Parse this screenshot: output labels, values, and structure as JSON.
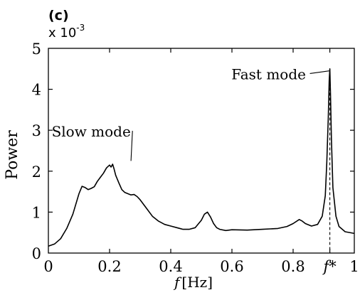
{
  "chart_data": {
    "type": "line",
    "panel_label": "(c)",
    "title": "",
    "xlabel_italic": "f",
    "xlabel_unit": "[Hz]",
    "ylabel": "Power",
    "y_scale_note_base": "x 10",
    "y_scale_note_exp": "-3",
    "xlim": [
      0,
      1
    ],
    "ylim": [
      0,
      5
    ],
    "x_ticks": [
      {
        "value": 0,
        "label": "0"
      },
      {
        "value": 0.2,
        "label": "0.2"
      },
      {
        "value": 0.4,
        "label": "0.4"
      },
      {
        "value": 0.6,
        "label": "0.6"
      },
      {
        "value": 0.8,
        "label": "0.8"
      },
      {
        "value": 0.92,
        "label": "f*"
      },
      {
        "value": 1,
        "label": "1"
      }
    ],
    "y_ticks": [
      {
        "value": 0,
        "label": "0"
      },
      {
        "value": 1,
        "label": "1"
      },
      {
        "value": 2,
        "label": "2"
      },
      {
        "value": 3,
        "label": "3"
      },
      {
        "value": 4,
        "label": "4"
      },
      {
        "value": 5,
        "label": "5"
      }
    ],
    "marker_line_x": 0.92,
    "series": [
      {
        "x": [
          0.0,
          0.02,
          0.04,
          0.06,
          0.08,
          0.1,
          0.11,
          0.12,
          0.13,
          0.14,
          0.15,
          0.16,
          0.17,
          0.18,
          0.19,
          0.2,
          0.205,
          0.21,
          0.215,
          0.22,
          0.23,
          0.24,
          0.25,
          0.26,
          0.27,
          0.28,
          0.29,
          0.3,
          0.32,
          0.34,
          0.36,
          0.38,
          0.4,
          0.42,
          0.44,
          0.46,
          0.48,
          0.5,
          0.51,
          0.52,
          0.53,
          0.54,
          0.55,
          0.56,
          0.58,
          0.6,
          0.65,
          0.7,
          0.75,
          0.78,
          0.8,
          0.82,
          0.83,
          0.84,
          0.86,
          0.88,
          0.895,
          0.905,
          0.91,
          0.915,
          0.918,
          0.92,
          0.922,
          0.925,
          0.93,
          0.94,
          0.95,
          0.97,
          1.0
        ],
        "y": [
          0.17,
          0.22,
          0.35,
          0.6,
          0.95,
          1.45,
          1.63,
          1.6,
          1.55,
          1.58,
          1.62,
          1.75,
          1.85,
          1.95,
          2.08,
          2.15,
          2.1,
          2.17,
          2.05,
          1.9,
          1.72,
          1.55,
          1.48,
          1.45,
          1.42,
          1.43,
          1.38,
          1.3,
          1.1,
          0.9,
          0.78,
          0.7,
          0.66,
          0.62,
          0.58,
          0.58,
          0.62,
          0.8,
          0.95,
          1.0,
          0.88,
          0.72,
          0.62,
          0.58,
          0.55,
          0.57,
          0.56,
          0.58,
          0.6,
          0.65,
          0.72,
          0.82,
          0.78,
          0.72,
          0.66,
          0.7,
          0.9,
          1.4,
          2.2,
          3.3,
          4.2,
          4.5,
          3.9,
          2.8,
          1.6,
          0.9,
          0.65,
          0.52,
          0.48
        ]
      }
    ],
    "annotations": [
      {
        "text": "Fast mode",
        "x": 0.72,
        "y": 4.35,
        "point_x": 0.918,
        "point_y": 4.45
      },
      {
        "text": "Slow mode",
        "x": 0.14,
        "y": 2.95,
        "point_x": 0.27,
        "point_y": 2.25
      }
    ]
  }
}
